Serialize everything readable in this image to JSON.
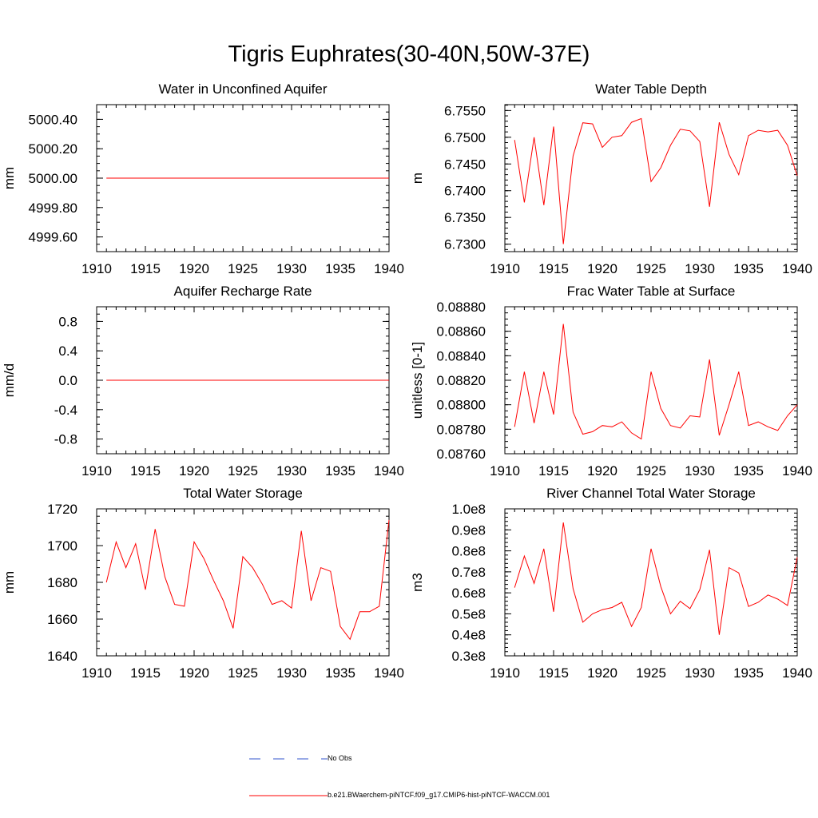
{
  "title": "Tigris Euphrates(30-40N,50W-37E)",
  "colors": {
    "series": "#ff0000",
    "obs": "#3355cc",
    "axis": "#000000"
  },
  "legend": [
    {
      "name": "No Obs",
      "style": "dashed",
      "color": "#3355cc"
    },
    {
      "name": "b.e21.BWaerchem-piNTCF.f09_g17.CMIP6-hist-piNTCF-WACCM.001",
      "style": "solid",
      "color": "#ff0000"
    }
  ],
  "chart_data": [
    {
      "type": "line",
      "title": "Water in Unconfined Aquifer",
      "ylabel": "mm",
      "xlim": [
        1910,
        1940
      ],
      "ylim": [
        4999.5,
        5000.5
      ],
      "xticks": [
        1910,
        1915,
        1920,
        1925,
        1930,
        1935,
        1940
      ],
      "yticks": [
        4999.6,
        4999.8,
        5000.0,
        5000.2,
        5000.4
      ],
      "ytick_labels": [
        "4999.60",
        "4999.80",
        "5000.00",
        "5000.20",
        "5000.40"
      ],
      "y_minor_step": 0.05,
      "x": [
        1911,
        1912,
        1913,
        1914,
        1915,
        1916,
        1917,
        1918,
        1919,
        1920,
        1921,
        1922,
        1923,
        1924,
        1925,
        1926,
        1927,
        1928,
        1929,
        1930,
        1931,
        1932,
        1933,
        1934,
        1935,
        1936,
        1937,
        1938,
        1939,
        1940
      ],
      "series": [
        {
          "values": [
            5000,
            5000,
            5000,
            5000,
            5000,
            5000,
            5000,
            5000,
            5000,
            5000,
            5000,
            5000,
            5000,
            5000,
            5000,
            5000,
            5000,
            5000,
            5000,
            5000,
            5000,
            5000,
            5000,
            5000,
            5000,
            5000,
            5000,
            5000,
            5000,
            5000
          ]
        }
      ]
    },
    {
      "type": "line",
      "title": "Water Table Depth",
      "ylabel": "m",
      "xlim": [
        1910,
        1940
      ],
      "ylim": [
        6.7286,
        6.7561
      ],
      "xticks": [
        1910,
        1915,
        1920,
        1925,
        1930,
        1935,
        1940
      ],
      "yticks": [
        6.73,
        6.735,
        6.74,
        6.745,
        6.75,
        6.755
      ],
      "ytick_labels": [
        "6.7300",
        "6.7350",
        "6.7400",
        "6.7450",
        "6.7500",
        "6.7550"
      ],
      "y_minor_step": 0.001,
      "x": [
        1911,
        1912,
        1913,
        1914,
        1915,
        1916,
        1917,
        1918,
        1919,
        1920,
        1921,
        1922,
        1923,
        1924,
        1925,
        1926,
        1927,
        1928,
        1929,
        1930,
        1931,
        1932,
        1933,
        1934,
        1935,
        1936,
        1937,
        1938,
        1939,
        1940
      ],
      "series": [
        {
          "values": [
            6.7495,
            6.7378,
            6.75,
            6.7373,
            6.752,
            6.73,
            6.7465,
            6.7527,
            6.7525,
            6.7481,
            6.75,
            6.7503,
            6.7528,
            6.7535,
            6.7417,
            6.7443,
            6.7485,
            6.7515,
            6.7512,
            6.7492,
            6.737,
            6.7528,
            6.7468,
            6.743,
            6.7503,
            6.7513,
            6.751,
            6.7513,
            6.7485,
            6.7428
          ]
        }
      ]
    },
    {
      "type": "line",
      "title": "Aquifer Recharge Rate",
      "ylabel": "mm/d",
      "xlim": [
        1910,
        1940
      ],
      "ylim": [
        -1.0,
        1.0
      ],
      "xticks": [
        1910,
        1915,
        1920,
        1925,
        1930,
        1935,
        1940
      ],
      "yticks": [
        -0.8,
        -0.4,
        0.0,
        0.4,
        0.8
      ],
      "ytick_labels": [
        "-0.8",
        "-0.4",
        "0.0",
        "0.4",
        "0.8"
      ],
      "y_minor_step": 0.1,
      "x": [
        1911,
        1912,
        1913,
        1914,
        1915,
        1916,
        1917,
        1918,
        1919,
        1920,
        1921,
        1922,
        1923,
        1924,
        1925,
        1926,
        1927,
        1928,
        1929,
        1930,
        1931,
        1932,
        1933,
        1934,
        1935,
        1936,
        1937,
        1938,
        1939,
        1940
      ],
      "series": [
        {
          "values": [
            0,
            0,
            0,
            0,
            0,
            0,
            0,
            0,
            0,
            0,
            0,
            0,
            0,
            0,
            0,
            0,
            0,
            0,
            0,
            0,
            0,
            0,
            0,
            0,
            0,
            0,
            0,
            0,
            0,
            0
          ]
        }
      ]
    },
    {
      "type": "line",
      "title": "Frac Water Table at Surface",
      "ylabel": "unitless [0-1]",
      "xlim": [
        1910,
        1940
      ],
      "ylim": [
        0.0876,
        0.0888
      ],
      "xticks": [
        1910,
        1915,
        1920,
        1925,
        1930,
        1935,
        1940
      ],
      "yticks": [
        0.0876,
        0.0878,
        0.088,
        0.0882,
        0.0884,
        0.0886,
        0.0888
      ],
      "ytick_labels": [
        "0.08760",
        "0.08780",
        "0.08800",
        "0.08820",
        "0.08840",
        "0.08860",
        "0.08880"
      ],
      "y_minor_step": 5e-05,
      "x": [
        1911,
        1912,
        1913,
        1914,
        1915,
        1916,
        1917,
        1918,
        1919,
        1920,
        1921,
        1922,
        1923,
        1924,
        1925,
        1926,
        1927,
        1928,
        1929,
        1930,
        1931,
        1932,
        1933,
        1934,
        1935,
        1936,
        1937,
        1938,
        1939,
        1940
      ],
      "series": [
        {
          "values": [
            0.08782,
            0.08827,
            0.08785,
            0.08827,
            0.08792,
            0.08866,
            0.08794,
            0.08776,
            0.08778,
            0.08783,
            0.08782,
            0.08786,
            0.08777,
            0.08772,
            0.08827,
            0.08797,
            0.08783,
            0.08781,
            0.08791,
            0.0879,
            0.08837,
            0.08775,
            0.088,
            0.08827,
            0.08783,
            0.08786,
            0.08782,
            0.08779,
            0.08791,
            0.088
          ]
        }
      ]
    },
    {
      "type": "line",
      "title": "Total Water Storage",
      "ylabel": "mm",
      "xlim": [
        1910,
        1940
      ],
      "ylim": [
        1640,
        1720
      ],
      "xticks": [
        1910,
        1915,
        1920,
        1925,
        1930,
        1935,
        1940
      ],
      "yticks": [
        1640,
        1660,
        1680,
        1700,
        1720
      ],
      "ytick_labels": [
        "1640",
        "1660",
        "1680",
        "1700",
        "1720"
      ],
      "y_minor_step": 4,
      "x": [
        1911,
        1912,
        1913,
        1914,
        1915,
        1916,
        1917,
        1918,
        1919,
        1920,
        1921,
        1922,
        1923,
        1924,
        1925,
        1926,
        1927,
        1928,
        1929,
        1930,
        1931,
        1932,
        1933,
        1934,
        1935,
        1936,
        1937,
        1938,
        1939,
        1940
      ],
      "series": [
        {
          "values": [
            1680,
            1702,
            1688,
            1701,
            1676,
            1709,
            1683,
            1668,
            1667,
            1702,
            1693,
            1681,
            1670,
            1655,
            1694,
            1688,
            1679,
            1668,
            1670,
            1666,
            1708,
            1670,
            1688,
            1686,
            1656,
            1649,
            1664,
            1664,
            1667,
            1714
          ]
        }
      ]
    },
    {
      "type": "line",
      "title": "River Channel Total Water Storage",
      "ylabel": "m3",
      "xlim": [
        1910,
        1940
      ],
      "ylim": [
        30000000.0,
        100000000.0
      ],
      "xticks": [
        1910,
        1915,
        1920,
        1925,
        1930,
        1935,
        1940
      ],
      "yticks": [
        30000000.0,
        40000000.0,
        50000000.0,
        60000000.0,
        70000000.0,
        80000000.0,
        90000000.0,
        100000000.0
      ],
      "ytick_labels": [
        "0.3e8",
        "0.4e8",
        "0.5e8",
        "0.6e8",
        "0.7e8",
        "0.8e8",
        "0.9e8",
        "1.0e8"
      ],
      "y_minor_step": 2000000.0,
      "x": [
        1911,
        1912,
        1913,
        1914,
        1915,
        1916,
        1917,
        1918,
        1919,
        1920,
        1921,
        1922,
        1923,
        1924,
        1925,
        1926,
        1927,
        1928,
        1929,
        1930,
        1931,
        1932,
        1933,
        1934,
        1935,
        1936,
        1937,
        1938,
        1939,
        1940
      ],
      "series": [
        {
          "values": [
            62500000.0,
            77500000.0,
            64500000.0,
            81000000.0,
            51000000.0,
            93500000.0,
            62000000.0,
            46000000.0,
            50000000.0,
            52000000.0,
            53000000.0,
            55500000.0,
            44000000.0,
            53000000.0,
            81000000.0,
            63000000.0,
            50000000.0,
            56000000.0,
            52500000.0,
            61500000.0,
            80500000.0,
            40000000.0,
            72000000.0,
            69500000.0,
            53500000.0,
            55500000.0,
            59000000.0,
            57000000.0,
            54000000.0,
            77000000.0
          ]
        }
      ]
    }
  ]
}
